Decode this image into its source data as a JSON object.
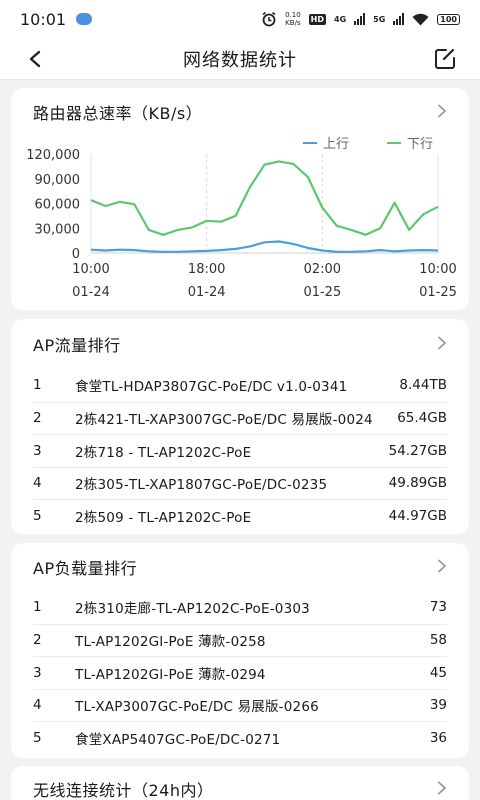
{
  "status": {
    "time": "10:01",
    "speed_value": "0.10",
    "speed_unit": "KB/s",
    "hd": "HD",
    "net1": "4G",
    "net2": "5G",
    "battery": "100"
  },
  "header": {
    "title": "网络数据统计"
  },
  "router_card": {
    "title": "路由器总速率（KB/s）"
  },
  "chart_data": {
    "type": "line",
    "title": "路由器总速率（KB/s）",
    "ylim": [
      0,
      120000
    ],
    "yticks": [
      "120,000",
      "90,000",
      "60,000",
      "30,000",
      "0"
    ],
    "ytick_values": [
      120000,
      90000,
      60000,
      30000,
      0
    ],
    "xticks": [
      {
        "time": "10:00",
        "date": "01-24"
      },
      {
        "time": "18:00",
        "date": "01-24"
      },
      {
        "time": "02:00",
        "date": "01-25"
      },
      {
        "time": "10:00",
        "date": "01-25"
      }
    ],
    "x_hours": [
      0,
      1,
      2,
      3,
      4,
      5,
      6,
      7,
      8,
      9,
      10,
      11,
      12,
      13,
      14,
      15,
      16,
      17,
      18,
      19,
      20,
      21,
      22,
      23,
      24
    ],
    "series": [
      {
        "name": "上行",
        "color": "#4a9fd8",
        "values": [
          4000,
          3000,
          4000,
          3500,
          2000,
          1500,
          1500,
          2000,
          2500,
          3500,
          5000,
          8000,
          13000,
          14000,
          11000,
          6000,
          3000,
          1500,
          1500,
          2000,
          3500,
          2000,
          3000,
          3500,
          3000
        ]
      },
      {
        "name": "下行",
        "color": "#5bc86e",
        "values": [
          64000,
          57000,
          62000,
          59000,
          28000,
          22000,
          28000,
          31000,
          39000,
          38000,
          45000,
          80000,
          107000,
          111000,
          108000,
          92000,
          55000,
          33000,
          28000,
          22000,
          30000,
          61000,
          28000,
          47000,
          56000
        ]
      }
    ],
    "legend_position": "top-right",
    "grid": "vertical-dashed"
  },
  "ap_traffic": {
    "title": "AP流量排行",
    "rows": [
      {
        "rank": "1",
        "name": "食堂TL-HDAP3807GC-PoE/DC v1.0-0341",
        "value": "8.44TB"
      },
      {
        "rank": "2",
        "name": "2栋421-TL-XAP3007GC-PoE/DC 易展版-0024",
        "value": "65.4GB"
      },
      {
        "rank": "3",
        "name": "2栋718 - TL-AP1202C-PoE",
        "value": "54.27GB"
      },
      {
        "rank": "4",
        "name": "2栋305-TL-XAP1807GC-PoE/DC-0235",
        "value": "49.89GB"
      },
      {
        "rank": "5",
        "name": "2栋509 - TL-AP1202C-PoE",
        "value": "44.97GB"
      }
    ]
  },
  "ap_load": {
    "title": "AP负载量排行",
    "rows": [
      {
        "rank": "1",
        "name": "2栋310走廊-TL-AP1202C-PoE-0303",
        "value": "73"
      },
      {
        "rank": "2",
        "name": "TL-AP1202GI-PoE 薄款-0258",
        "value": "58"
      },
      {
        "rank": "3",
        "name": "TL-AP1202GI-PoE 薄款-0294",
        "value": "45"
      },
      {
        "rank": "4",
        "name": "TL-XAP3007GC-PoE/DC 易展版-0266",
        "value": "39"
      },
      {
        "rank": "5",
        "name": "食堂XAP5407GC-PoE/DC-0271",
        "value": "36"
      }
    ]
  },
  "wireless_card": {
    "title": "无线连接统计（24h内）"
  }
}
